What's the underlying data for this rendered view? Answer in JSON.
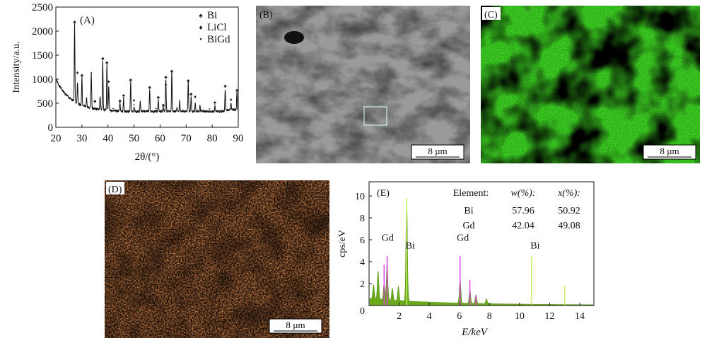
{
  "panels": {
    "A": "(A)",
    "B": "(B)",
    "C": "(C)",
    "D": "(D)",
    "E": "(E)"
  },
  "scale_bar": "8  µm",
  "chart_data": [
    {
      "type": "line",
      "panel": "A",
      "xlabel": "2θ/(°)",
      "ylabel": "Intensity/a.u.",
      "xlim": [
        20,
        90
      ],
      "ylim": [
        0,
        2500
      ],
      "xticks": [
        20,
        30,
        40,
        50,
        60,
        70,
        80,
        90
      ],
      "yticks": [
        0,
        500,
        1000,
        1500,
        2000,
        2500
      ],
      "legend": {
        "placement": "top-right",
        "entries": [
          {
            "name": "Bi",
            "symbol": "spade"
          },
          {
            "name": "LiCl",
            "symbol": "diamond"
          },
          {
            "name": "BiGd",
            "symbol": "dot"
          }
        ]
      },
      "peaks": [
        [
          27.2,
          2150
        ],
        [
          28.3,
          950
        ],
        [
          30,
          1050
        ],
        [
          31.8,
          620
        ],
        [
          33.6,
          1130
        ],
        [
          37,
          650
        ],
        [
          38,
          1380
        ],
        [
          39.6,
          1320
        ],
        [
          40.3,
          850
        ],
        [
          44.6,
          500
        ],
        [
          46,
          600
        ],
        [
          48.7,
          960
        ],
        [
          50,
          430
        ],
        [
          52.4,
          540
        ],
        [
          56,
          770
        ],
        [
          59.3,
          580
        ],
        [
          61.2,
          430
        ],
        [
          62.2,
          1000
        ],
        [
          64.5,
          1150
        ],
        [
          66.5,
          430
        ],
        [
          67.5,
          550
        ],
        [
          70.8,
          950
        ],
        [
          71.9,
          650
        ],
        [
          73.5,
          500
        ],
        [
          75.3,
          450
        ],
        [
          81,
          450
        ],
        [
          85,
          800
        ],
        [
          87.2,
          500
        ],
        [
          89.5,
          730
        ]
      ],
      "markers": [
        [
          27.2,
          2200,
          "Bi"
        ],
        [
          28.3,
          1150,
          "LiCl"
        ],
        [
          30,
          1090,
          "Bi"
        ],
        [
          33.6,
          1140,
          "BiGd"
        ],
        [
          35,
          550,
          "Bi"
        ],
        [
          38,
          1440,
          "Bi"
        ],
        [
          39.6,
          1350,
          "Bi"
        ],
        [
          40.3,
          960,
          "LiCl"
        ],
        [
          42,
          400,
          "BiGd"
        ],
        [
          44.6,
          560,
          "Bi"
        ],
        [
          46,
          670,
          "Bi"
        ],
        [
          48.7,
          990,
          "Bi"
        ],
        [
          50,
          570,
          "LiCl"
        ],
        [
          50,
          480,
          "BiGd"
        ],
        [
          56,
          840,
          "Bi"
        ],
        [
          58.5,
          400,
          "BiGd"
        ],
        [
          59.3,
          630,
          "Bi"
        ],
        [
          61.2,
          470,
          "Bi"
        ],
        [
          62.2,
          1050,
          "Bi"
        ],
        [
          62.2,
          900,
          "LiCl"
        ],
        [
          64.5,
          1180,
          "Bi"
        ],
        [
          70.8,
          980,
          "Bi"
        ],
        [
          71.9,
          700,
          "Bi"
        ],
        [
          73.5,
          650,
          "LiCl"
        ],
        [
          79,
          390,
          "BiGd"
        ],
        [
          81,
          520,
          "Bi"
        ],
        [
          85,
          870,
          "Bi"
        ],
        [
          87.2,
          590,
          "LiCl"
        ],
        [
          89.5,
          780,
          "Bi"
        ]
      ]
    },
    {
      "type": "area",
      "panel": "E",
      "xlabel": "E/keV",
      "ylabel": "cps/eV",
      "xlim": [
        0,
        15
      ],
      "ylim": [
        0,
        11
      ],
      "xticks": [
        0,
        2,
        4,
        6,
        8,
        10,
        12,
        14
      ],
      "yticks": [
        0,
        2,
        4,
        6,
        8,
        10
      ],
      "spectrum_peaks": [
        [
          0.3,
          1.3
        ],
        [
          0.6,
          2.6
        ],
        [
          1.0,
          1.5
        ],
        [
          1.2,
          3.4
        ],
        [
          1.55,
          1.1
        ],
        [
          1.95,
          1.3
        ],
        [
          2.5,
          9.6
        ],
        [
          6.05,
          2.2
        ],
        [
          6.7,
          1.2
        ],
        [
          7.1,
          0.8
        ],
        [
          7.8,
          0.45
        ]
      ],
      "gd_lines": [
        [
          1.0,
          3.7
        ],
        [
          1.2,
          4.5
        ],
        [
          6.05,
          4.5
        ],
        [
          6.7,
          2.3
        ],
        [
          7.1,
          0.9
        ]
      ],
      "bi_lines": [
        [
          2.5,
          9.8
        ],
        [
          10.8,
          4.5
        ],
        [
          13.0,
          1.8
        ]
      ],
      "peak_labels": [
        {
          "text": "Gd",
          "x": 1.0,
          "y": 5.9
        },
        {
          "text": "Bi",
          "x": 2.5,
          "y": 5.2
        },
        {
          "text": "Gd",
          "x": 6.0,
          "y": 5.9
        },
        {
          "text": "Bi",
          "x": 10.8,
          "y": 5.2
        }
      ],
      "composition_table": {
        "headers": [
          "Element:",
          "w(%):",
          "x(%):"
        ],
        "rows": [
          [
            "Bi",
            "57.96",
            "50.92"
          ],
          [
            "Gd",
            "42.04",
            "49.08"
          ]
        ]
      },
      "colors": {
        "spectrum": "#6aaa1a",
        "gd": "#e040e0",
        "bi": "#c8f060"
      }
    }
  ]
}
